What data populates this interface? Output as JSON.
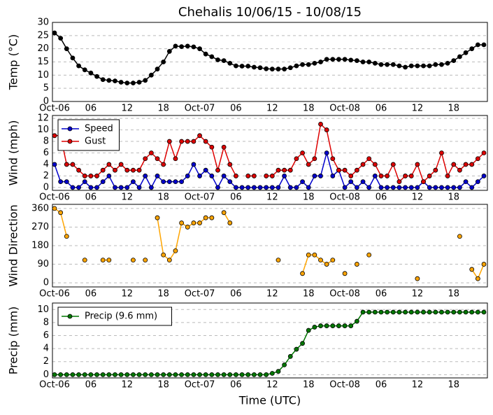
{
  "chart_data": [
    {
      "type": "line",
      "title": "Chehalis 10/06/15 - 10/08/15",
      "ylabel": "Temp ($^{\\circ}$C)",
      "categories": [
        "Oct-06",
        null,
        null,
        null,
        null,
        null,
        "06",
        null,
        null,
        null,
        null,
        null,
        "12",
        null,
        null,
        null,
        null,
        null,
        "18",
        null,
        null,
        null,
        null,
        null,
        "Oct-07",
        null,
        null,
        null,
        null,
        null,
        "06",
        null,
        null,
        null,
        null,
        null,
        "12",
        null,
        null,
        null,
        null,
        null,
        "18",
        null,
        null,
        null,
        null,
        null,
        "Oct-08",
        null,
        null,
        null,
        null,
        null,
        "06",
        null,
        null,
        null,
        null,
        null,
        "12",
        null,
        null,
        null,
        null,
        null,
        "18",
        null,
        null,
        null,
        null,
        null
      ],
      "values": [
        26,
        24,
        20,
        16.5,
        13.5,
        12,
        10.8,
        9.5,
        8.3,
        8,
        7.8,
        7.3,
        7,
        7,
        7.3,
        8,
        10,
        12.3,
        15,
        19,
        21,
        20.8,
        21,
        20.7,
        20,
        18,
        17,
        15.8,
        15.5,
        14.5,
        13.5,
        13.4,
        13.4,
        13,
        12.8,
        12.4,
        12.3,
        12.3,
        12.3,
        12.8,
        13.5,
        14,
        14,
        14.5,
        15,
        16,
        16,
        16,
        16,
        15.7,
        15.5,
        15,
        15,
        14.5,
        14,
        14,
        14,
        13.5,
        13,
        13.5,
        13.5,
        13.5,
        13.5,
        14,
        14,
        14.5,
        15.5,
        17,
        18.5,
        20,
        21.5,
        21.5
      ],
      "color": "#000000",
      "ylim": [
        0,
        30
      ],
      "yticks": [
        0,
        5,
        10,
        15,
        20,
        25,
        30
      ],
      "grid": true
    },
    {
      "type": "line",
      "ylabel": "Wind (mph)",
      "categories": [
        "Oct-06",
        null,
        null,
        null,
        null,
        null,
        "06",
        null,
        null,
        null,
        null,
        null,
        "12",
        null,
        null,
        null,
        null,
        null,
        "18",
        null,
        null,
        null,
        null,
        null,
        "Oct-07",
        null,
        null,
        null,
        null,
        null,
        "06",
        null,
        null,
        null,
        null,
        null,
        "12",
        null,
        null,
        null,
        null,
        null,
        "18",
        null,
        null,
        null,
        null,
        null,
        "Oct-08",
        null,
        null,
        null,
        null,
        null,
        "06",
        null,
        null,
        null,
        null,
        null,
        "12",
        null,
        null,
        null,
        null,
        null,
        "18",
        null,
        null,
        null,
        null,
        null
      ],
      "series": [
        {
          "name": "Speed",
          "color": "#0000cc",
          "values": [
            4,
            1,
            1,
            0,
            0,
            1,
            0,
            0,
            1,
            2,
            0,
            0,
            0,
            1,
            0,
            2,
            0,
            2,
            1,
            1,
            1,
            1,
            2,
            4,
            2,
            3,
            2,
            0,
            2,
            1,
            0,
            0,
            0,
            0,
            0,
            0,
            0,
            0,
            2,
            0,
            0,
            1,
            0,
            2,
            2,
            6,
            2,
            3,
            0,
            1,
            0,
            1,
            0,
            2,
            0,
            0,
            0,
            0,
            0,
            0,
            0,
            1,
            0,
            0,
            0,
            0,
            0,
            0,
            1,
            0,
            1,
            2
          ]
        },
        {
          "name": "Gust",
          "color": "#dd0000",
          "values": [
            9,
            9,
            4,
            4,
            3,
            2,
            2,
            2,
            3,
            4,
            3,
            4,
            3,
            3,
            3,
            5,
            6,
            5,
            4,
            8,
            5,
            8,
            8,
            8,
            9,
            8,
            7,
            3,
            7,
            4,
            2,
            null,
            2,
            2,
            null,
            2,
            2,
            3,
            3,
            3,
            5,
            6,
            4,
            5,
            11,
            10,
            5,
            3,
            3,
            2,
            3,
            4,
            5,
            4,
            2,
            2,
            4,
            1,
            2,
            2,
            4,
            1,
            2,
            3,
            6,
            2,
            4,
            3,
            4,
            4,
            5,
            6
          ]
        }
      ],
      "legend": "upper left",
      "ylim": [
        -0.5,
        12.5
      ],
      "yticks": [
        0,
        2,
        4,
        6,
        8,
        10,
        12
      ],
      "grid": true
    },
    {
      "type": "line",
      "ylabel": "Wind Direction",
      "categories": [
        "Oct-06",
        null,
        null,
        null,
        null,
        null,
        "06",
        null,
        null,
        null,
        null,
        null,
        "12",
        null,
        null,
        null,
        null,
        null,
        "18",
        null,
        null,
        null,
        null,
        null,
        "Oct-07",
        null,
        null,
        null,
        null,
        null,
        "06",
        null,
        null,
        null,
        null,
        null,
        "12",
        null,
        null,
        null,
        null,
        null,
        "18",
        null,
        null,
        null,
        null,
        null,
        "Oct-08",
        null,
        null,
        null,
        null,
        null,
        "06",
        null,
        null,
        null,
        null,
        null,
        "12",
        null,
        null,
        null,
        null,
        null,
        "18",
        null,
        null,
        null,
        null,
        null
      ],
      "values": [
        360,
        340,
        225,
        null,
        null,
        110,
        null,
        null,
        110,
        110,
        null,
        null,
        null,
        110,
        null,
        110,
        null,
        315,
        135,
        110,
        155,
        290,
        270,
        290,
        290,
        315,
        315,
        null,
        340,
        290,
        null,
        null,
        null,
        null,
        null,
        null,
        null,
        110,
        null,
        null,
        null,
        45,
        135,
        135,
        110,
        90,
        110,
        null,
        45,
        null,
        90,
        null,
        135,
        null,
        null,
        null,
        null,
        null,
        null,
        null,
        20,
        null,
        null,
        null,
        null,
        null,
        null,
        225,
        null,
        65,
        20,
        90
      ],
      "color": "#ffa500",
      "ylim": [
        -20,
        380
      ],
      "yticks": [
        0,
        90,
        180,
        270,
        360
      ],
      "grid": true
    },
    {
      "type": "line",
      "ylabel": "Precip (mm)",
      "xlabel": "Time (UTC)",
      "categories": [
        "Oct-06",
        null,
        null,
        null,
        null,
        null,
        "06",
        null,
        null,
        null,
        null,
        null,
        "12",
        null,
        null,
        null,
        null,
        null,
        "18",
        null,
        null,
        null,
        null,
        null,
        "Oct-07",
        null,
        null,
        null,
        null,
        null,
        "06",
        null,
        null,
        null,
        null,
        null,
        "12",
        null,
        null,
        null,
        null,
        null,
        "18",
        null,
        null,
        null,
        null,
        null,
        "Oct-08",
        null,
        null,
        null,
        null,
        null,
        "06",
        null,
        null,
        null,
        null,
        null,
        "12",
        null,
        null,
        null,
        null,
        null,
        "18",
        null,
        null,
        null,
        null,
        null
      ],
      "series": [
        {
          "name": "Precip (9.6 mm)",
          "color": "#007700",
          "values": [
            0,
            0,
            0,
            0,
            0,
            0,
            0,
            0,
            0,
            0,
            0,
            0,
            0,
            0,
            0,
            0,
            0,
            0,
            0,
            0,
            0,
            0,
            0,
            0,
            0,
            0,
            0,
            0,
            0,
            0,
            0,
            0,
            0,
            0,
            0,
            0,
            0.2,
            0.5,
            1.5,
            2.8,
            3.9,
            4.8,
            6.8,
            7.3,
            7.5,
            7.5,
            7.5,
            7.5,
            7.5,
            7.5,
            8.2,
            9.6,
            9.6,
            9.6,
            9.6,
            9.6,
            9.6,
            9.6,
            9.6,
            9.6,
            9.6,
            9.6,
            9.6,
            9.6,
            9.6,
            9.6,
            9.6,
            9.6,
            9.6,
            9.6,
            9.6,
            9.6
          ]
        }
      ],
      "legend": "upper left",
      "ylim": [
        -0.5,
        11
      ],
      "yticks": [
        0,
        2,
        4,
        6,
        8,
        10
      ],
      "grid": true
    }
  ]
}
